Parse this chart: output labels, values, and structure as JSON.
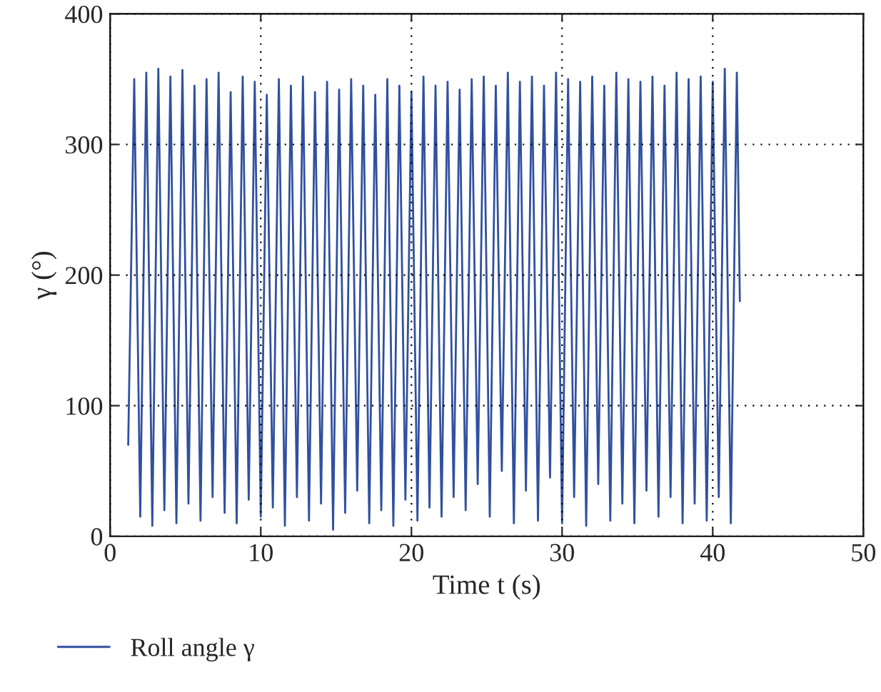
{
  "chart_data": {
    "type": "line",
    "xlabel": "Time t (s)",
    "ylabel": "γ (°)",
    "xlim": [
      0,
      50
    ],
    "xticks": [
      0,
      10,
      20,
      30,
      40,
      50
    ],
    "ylim": [
      0,
      400
    ],
    "yticks": [
      0,
      100,
      200,
      300,
      400
    ],
    "grid": true,
    "legend": "bottom",
    "line_style": "solid",
    "marker": "none",
    "series": [
      {
        "name": "Roll angle γ",
        "color": "#3050a0",
        "x": [
          1.2,
          1.6,
          2.0,
          2.4,
          2.8,
          3.2,
          3.6,
          4.0,
          4.4,
          4.8,
          5.2,
          5.6,
          6.0,
          6.4,
          6.8,
          7.2,
          7.6,
          8.0,
          8.4,
          8.8,
          9.2,
          9.6,
          10.0,
          10.4,
          10.8,
          11.2,
          11.6,
          12.0,
          12.4,
          12.8,
          13.2,
          13.6,
          14.0,
          14.4,
          14.8,
          15.2,
          15.6,
          16.0,
          16.4,
          16.8,
          17.2,
          17.6,
          18.0,
          18.4,
          18.8,
          19.2,
          19.6,
          20.0,
          20.4,
          20.8,
          21.2,
          21.6,
          22.0,
          22.4,
          22.8,
          23.2,
          23.6,
          24.0,
          24.4,
          24.8,
          25.2,
          25.6,
          26.0,
          26.4,
          26.8,
          27.2,
          27.6,
          28.0,
          28.4,
          28.8,
          29.2,
          29.6,
          30.0,
          30.4,
          30.8,
          31.2,
          31.6,
          32.0,
          32.4,
          32.8,
          33.2,
          33.6,
          34.0,
          34.4,
          34.8,
          35.2,
          35.6,
          36.0,
          36.4,
          36.8,
          37.2,
          37.6,
          38.0,
          38.4,
          38.8,
          39.2,
          39.6,
          40.0,
          40.4,
          40.8,
          41.2,
          41.6,
          41.8
        ],
        "values": [
          70,
          350,
          15,
          355,
          8,
          358,
          20,
          352,
          10,
          357,
          25,
          345,
          12,
          350,
          30,
          355,
          18,
          340,
          10,
          352,
          28,
          348,
          15,
          338,
          22,
          350,
          8,
          345,
          30,
          352,
          12,
          340,
          25,
          348,
          5,
          342,
          18,
          350,
          35,
          345,
          10,
          338,
          20,
          350,
          8,
          345,
          28,
          340,
          12,
          352,
          22,
          345,
          15,
          348,
          30,
          342,
          20,
          350,
          40,
          352,
          15,
          345,
          50,
          355,
          10,
          348,
          35,
          352,
          12,
          345,
          45,
          355,
          10,
          350,
          30,
          348,
          8,
          352,
          40,
          345,
          12,
          355,
          25,
          350,
          10,
          348,
          35,
          352,
          15,
          345,
          30,
          355,
          10,
          350,
          25,
          352,
          12,
          348,
          30,
          358,
          10,
          355,
          180
        ]
      }
    ]
  }
}
